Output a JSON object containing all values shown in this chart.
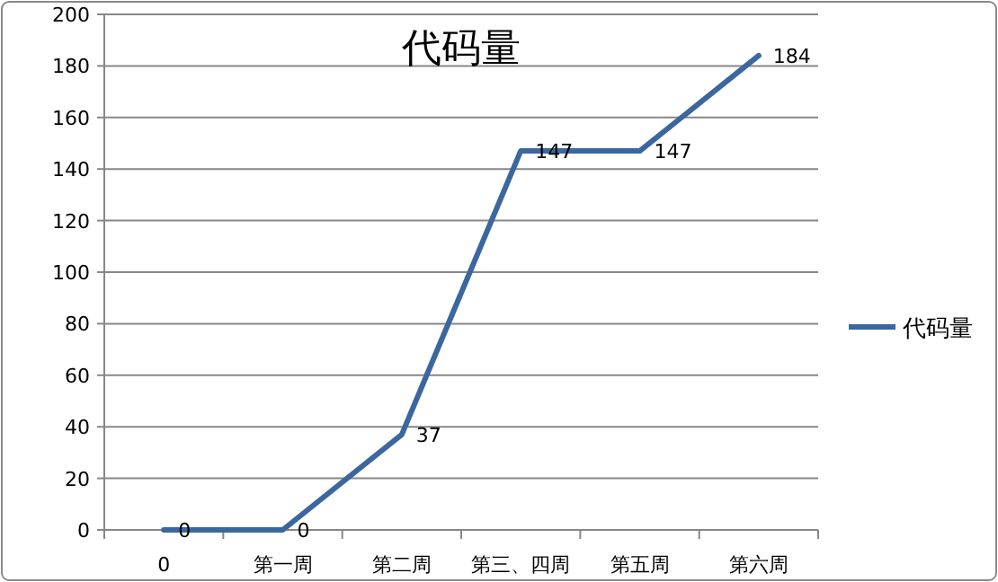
{
  "chart_data": {
    "type": "line",
    "title": "代码量",
    "categories": [
      "0",
      "第一周",
      "第二周",
      "第三、四周",
      "第五周",
      "第六周"
    ],
    "series": [
      {
        "name": "代码量",
        "color": "#3c679e",
        "values": [
          0,
          0,
          37,
          147,
          147,
          184
        ]
      }
    ],
    "ylim": [
      0,
      200
    ],
    "yticks": [
      0,
      20,
      40,
      60,
      80,
      100,
      120,
      140,
      160,
      180,
      200
    ],
    "grid": "y",
    "legend": "right",
    "data_labels": true,
    "marker": "none",
    "line_style": "solid"
  }
}
